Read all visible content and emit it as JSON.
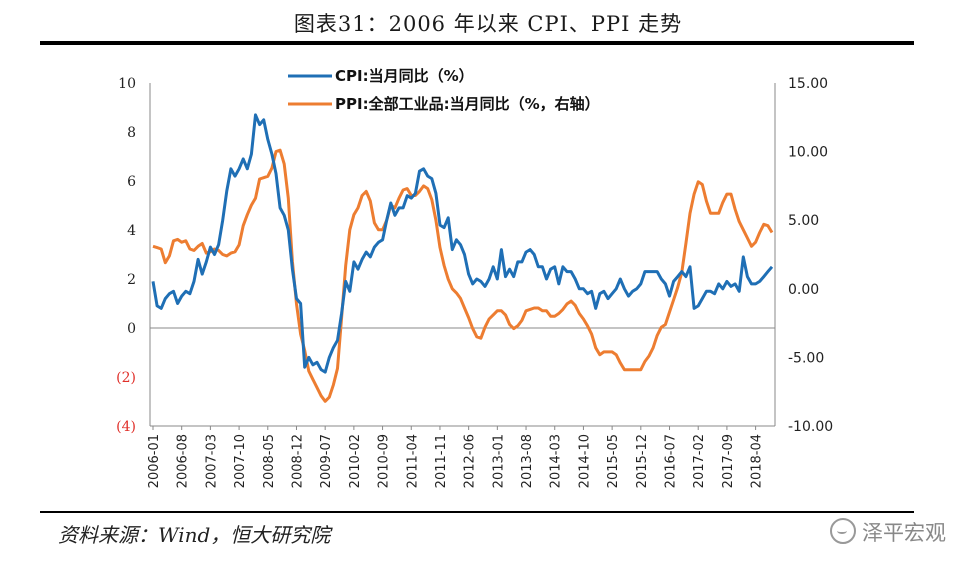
{
  "title": "图表31：2006 年以来 CPI、PPI 走势",
  "source": "资料来源：Wind，恒大研究院",
  "watermark": "泽平宏观",
  "colors": {
    "cpi": "#1f6fb5",
    "ppi": "#ed7d31",
    "negative_tick": "#e0302a"
  },
  "chart_data": {
    "type": "line",
    "title": "图表31：2006 年以来 CPI、PPI 走势",
    "x_start": "2006-01",
    "x_end": "2018-10",
    "x_tick_labels": [
      "2006-01",
      "2006-08",
      "2007-03",
      "2007-10",
      "2008-05",
      "2008-12",
      "2009-07",
      "2010-02",
      "2010-09",
      "2011-04",
      "2011-11",
      "2012-06",
      "2013-01",
      "2013-08",
      "2014-03",
      "2014-10",
      "2015-05",
      "2015-12",
      "2016-07",
      "2017-02",
      "2017-09",
      "2018-04"
    ],
    "y_left": {
      "min": -4,
      "max": 10,
      "step": 2,
      "tick_labels": [
        "(4)",
        "(2)",
        "0",
        "2",
        "4",
        "6",
        "8",
        "10"
      ]
    },
    "y_right": {
      "min": -10,
      "max": 15,
      "step": 5,
      "tick_labels": [
        "-10.00",
        "-5.00",
        "0.00",
        "5.00",
        "10.00",
        "15.00"
      ]
    },
    "legend_position": "top-center",
    "series": [
      {
        "name": "CPI:当月同比（%）",
        "axis": "left",
        "values": [
          1.9,
          0.9,
          0.8,
          1.2,
          1.4,
          1.5,
          1.0,
          1.3,
          1.5,
          1.4,
          1.9,
          2.8,
          2.2,
          2.7,
          3.3,
          3.0,
          3.4,
          4.4,
          5.6,
          6.5,
          6.2,
          6.5,
          6.9,
          6.5,
          7.1,
          8.7,
          8.3,
          8.5,
          7.7,
          7.1,
          6.3,
          4.9,
          4.6,
          4.0,
          2.4,
          1.2,
          1.0,
          -1.6,
          -1.2,
          -1.5,
          -1.4,
          -1.7,
          -1.8,
          -1.2,
          -0.8,
          -0.5,
          0.6,
          1.9,
          1.5,
          2.7,
          2.4,
          2.8,
          3.1,
          2.9,
          3.3,
          3.5,
          3.6,
          4.4,
          5.1,
          4.6,
          4.9,
          4.9,
          5.4,
          5.3,
          5.5,
          6.4,
          6.5,
          6.2,
          6.1,
          5.5,
          4.2,
          4.1,
          4.5,
          3.2,
          3.6,
          3.4,
          3.0,
          2.2,
          1.8,
          2.0,
          1.9,
          1.7,
          2.0,
          2.5,
          2.0,
          3.2,
          2.1,
          2.4,
          2.1,
          2.7,
          2.7,
          3.1,
          3.2,
          3.0,
          2.5,
          2.5,
          2.0,
          2.4,
          2.5,
          1.8,
          2.5,
          2.3,
          2.3,
          2.0,
          1.6,
          1.6,
          1.4,
          1.5,
          0.8,
          1.4,
          1.5,
          1.2,
          1.4,
          1.6,
          2.0,
          1.6,
          1.3,
          1.5,
          1.6,
          1.8,
          2.3,
          2.3,
          2.3,
          2.3,
          2.0,
          1.8,
          1.3,
          1.9,
          2.1,
          2.3,
          2.1,
          2.5,
          0.8,
          0.9,
          1.2,
          1.5,
          1.5,
          1.4,
          1.8,
          1.6,
          1.9,
          1.7,
          1.8,
          1.5,
          2.9,
          2.1,
          1.8,
          1.8,
          1.9,
          2.1,
          2.3,
          2.5
        ]
      },
      {
        "name": "PPI:全部工业品:当月同比（%，右轴）",
        "axis": "right",
        "values": [
          3.1,
          3.0,
          2.9,
          1.9,
          2.4,
          3.5,
          3.6,
          3.4,
          3.5,
          2.9,
          2.8,
          3.1,
          3.3,
          2.6,
          2.7,
          2.9,
          2.8,
          2.5,
          2.4,
          2.6,
          2.7,
          3.2,
          4.6,
          5.4,
          6.1,
          6.6,
          8.0,
          8.1,
          8.2,
          8.8,
          10.0,
          10.1,
          9.1,
          6.6,
          2.0,
          -1.1,
          -3.3,
          -4.5,
          -6.0,
          -6.6,
          -7.2,
          -7.8,
          -8.2,
          -7.9,
          -7.0,
          -5.8,
          -2.1,
          1.7,
          4.3,
          5.4,
          5.9,
          6.8,
          7.1,
          6.4,
          4.8,
          4.3,
          4.3,
          5.0,
          6.1,
          5.9,
          6.6,
          7.2,
          7.3,
          6.8,
          6.8,
          7.1,
          7.5,
          7.3,
          6.5,
          5.0,
          3.0,
          1.7,
          0.7,
          0.0,
          -0.3,
          -0.7,
          -1.4,
          -2.1,
          -2.9,
          -3.5,
          -3.6,
          -2.8,
          -2.2,
          -1.9,
          -1.6,
          -1.6,
          -1.9,
          -2.6,
          -2.9,
          -2.7,
          -2.3,
          -1.6,
          -1.5,
          -1.4,
          -1.4,
          -1.6,
          -1.6,
          -2.0,
          -2.0,
          -1.8,
          -1.5,
          -1.1,
          -0.9,
          -1.2,
          -1.8,
          -2.2,
          -2.7,
          -3.3,
          -4.3,
          -4.8,
          -4.6,
          -4.6,
          -4.6,
          -4.8,
          -5.4,
          -5.9,
          -5.9,
          -5.9,
          -5.9,
          -5.9,
          -5.3,
          -4.9,
          -4.3,
          -3.4,
          -2.8,
          -2.6,
          -1.7,
          -0.8,
          0.1,
          1.2,
          3.3,
          5.5,
          6.9,
          7.8,
          7.6,
          6.4,
          5.5,
          5.5,
          5.5,
          6.3,
          6.9,
          6.9,
          5.8,
          4.9,
          4.3,
          3.7,
          3.1,
          3.4,
          4.1,
          4.7,
          4.6,
          4.1
        ]
      }
    ]
  }
}
